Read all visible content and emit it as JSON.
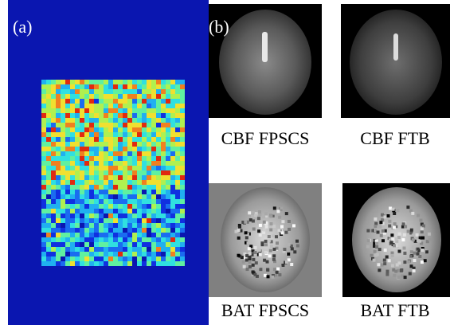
{
  "panel_a": {
    "label": "(a)"
  },
  "panel_b": {
    "label": "(b)",
    "images": [
      {
        "caption": "CBF FPSCS"
      },
      {
        "caption": "CBF FTB"
      },
      {
        "caption": "BAT FPSCS"
      },
      {
        "caption": "BAT FTB"
      }
    ]
  }
}
